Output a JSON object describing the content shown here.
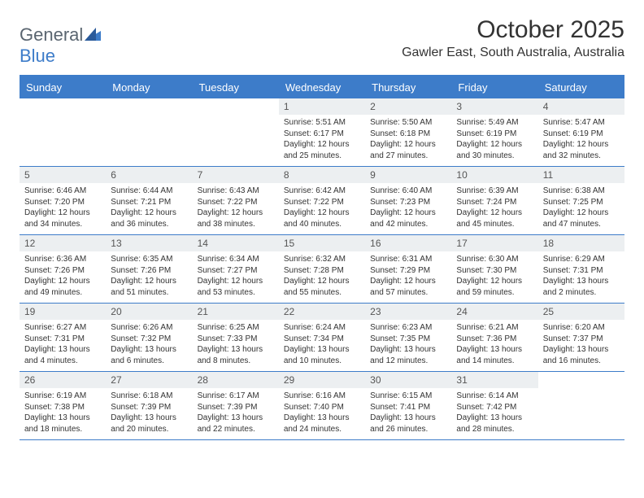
{
  "brand": {
    "part1": "General",
    "part2": "Blue"
  },
  "title": "October 2025",
  "location": "Gawler East, South Australia, Australia",
  "colors": {
    "accent": "#3d7cc9",
    "header_bg": "#3d7cc9",
    "header_text": "#ffffff",
    "daynum_bg": "#eceff1",
    "body_text": "#333333",
    "logo_gray": "#5a6570"
  },
  "day_headers": [
    "Sunday",
    "Monday",
    "Tuesday",
    "Wednesday",
    "Thursday",
    "Friday",
    "Saturday"
  ],
  "weeks": [
    [
      {
        "empty": true
      },
      {
        "empty": true
      },
      {
        "empty": true
      },
      {
        "num": "1",
        "sunrise": "Sunrise: 5:51 AM",
        "sunset": "Sunset: 6:17 PM",
        "daylight": "Daylight: 12 hours and 25 minutes."
      },
      {
        "num": "2",
        "sunrise": "Sunrise: 5:50 AM",
        "sunset": "Sunset: 6:18 PM",
        "daylight": "Daylight: 12 hours and 27 minutes."
      },
      {
        "num": "3",
        "sunrise": "Sunrise: 5:49 AM",
        "sunset": "Sunset: 6:19 PM",
        "daylight": "Daylight: 12 hours and 30 minutes."
      },
      {
        "num": "4",
        "sunrise": "Sunrise: 5:47 AM",
        "sunset": "Sunset: 6:19 PM",
        "daylight": "Daylight: 12 hours and 32 minutes."
      }
    ],
    [
      {
        "num": "5",
        "sunrise": "Sunrise: 6:46 AM",
        "sunset": "Sunset: 7:20 PM",
        "daylight": "Daylight: 12 hours and 34 minutes."
      },
      {
        "num": "6",
        "sunrise": "Sunrise: 6:44 AM",
        "sunset": "Sunset: 7:21 PM",
        "daylight": "Daylight: 12 hours and 36 minutes."
      },
      {
        "num": "7",
        "sunrise": "Sunrise: 6:43 AM",
        "sunset": "Sunset: 7:22 PM",
        "daylight": "Daylight: 12 hours and 38 minutes."
      },
      {
        "num": "8",
        "sunrise": "Sunrise: 6:42 AM",
        "sunset": "Sunset: 7:22 PM",
        "daylight": "Daylight: 12 hours and 40 minutes."
      },
      {
        "num": "9",
        "sunrise": "Sunrise: 6:40 AM",
        "sunset": "Sunset: 7:23 PM",
        "daylight": "Daylight: 12 hours and 42 minutes."
      },
      {
        "num": "10",
        "sunrise": "Sunrise: 6:39 AM",
        "sunset": "Sunset: 7:24 PM",
        "daylight": "Daylight: 12 hours and 45 minutes."
      },
      {
        "num": "11",
        "sunrise": "Sunrise: 6:38 AM",
        "sunset": "Sunset: 7:25 PM",
        "daylight": "Daylight: 12 hours and 47 minutes."
      }
    ],
    [
      {
        "num": "12",
        "sunrise": "Sunrise: 6:36 AM",
        "sunset": "Sunset: 7:26 PM",
        "daylight": "Daylight: 12 hours and 49 minutes."
      },
      {
        "num": "13",
        "sunrise": "Sunrise: 6:35 AM",
        "sunset": "Sunset: 7:26 PM",
        "daylight": "Daylight: 12 hours and 51 minutes."
      },
      {
        "num": "14",
        "sunrise": "Sunrise: 6:34 AM",
        "sunset": "Sunset: 7:27 PM",
        "daylight": "Daylight: 12 hours and 53 minutes."
      },
      {
        "num": "15",
        "sunrise": "Sunrise: 6:32 AM",
        "sunset": "Sunset: 7:28 PM",
        "daylight": "Daylight: 12 hours and 55 minutes."
      },
      {
        "num": "16",
        "sunrise": "Sunrise: 6:31 AM",
        "sunset": "Sunset: 7:29 PM",
        "daylight": "Daylight: 12 hours and 57 minutes."
      },
      {
        "num": "17",
        "sunrise": "Sunrise: 6:30 AM",
        "sunset": "Sunset: 7:30 PM",
        "daylight": "Daylight: 12 hours and 59 minutes."
      },
      {
        "num": "18",
        "sunrise": "Sunrise: 6:29 AM",
        "sunset": "Sunset: 7:31 PM",
        "daylight": "Daylight: 13 hours and 2 minutes."
      }
    ],
    [
      {
        "num": "19",
        "sunrise": "Sunrise: 6:27 AM",
        "sunset": "Sunset: 7:31 PM",
        "daylight": "Daylight: 13 hours and 4 minutes."
      },
      {
        "num": "20",
        "sunrise": "Sunrise: 6:26 AM",
        "sunset": "Sunset: 7:32 PM",
        "daylight": "Daylight: 13 hours and 6 minutes."
      },
      {
        "num": "21",
        "sunrise": "Sunrise: 6:25 AM",
        "sunset": "Sunset: 7:33 PM",
        "daylight": "Daylight: 13 hours and 8 minutes."
      },
      {
        "num": "22",
        "sunrise": "Sunrise: 6:24 AM",
        "sunset": "Sunset: 7:34 PM",
        "daylight": "Daylight: 13 hours and 10 minutes."
      },
      {
        "num": "23",
        "sunrise": "Sunrise: 6:23 AM",
        "sunset": "Sunset: 7:35 PM",
        "daylight": "Daylight: 13 hours and 12 minutes."
      },
      {
        "num": "24",
        "sunrise": "Sunrise: 6:21 AM",
        "sunset": "Sunset: 7:36 PM",
        "daylight": "Daylight: 13 hours and 14 minutes."
      },
      {
        "num": "25",
        "sunrise": "Sunrise: 6:20 AM",
        "sunset": "Sunset: 7:37 PM",
        "daylight": "Daylight: 13 hours and 16 minutes."
      }
    ],
    [
      {
        "num": "26",
        "sunrise": "Sunrise: 6:19 AM",
        "sunset": "Sunset: 7:38 PM",
        "daylight": "Daylight: 13 hours and 18 minutes."
      },
      {
        "num": "27",
        "sunrise": "Sunrise: 6:18 AM",
        "sunset": "Sunset: 7:39 PM",
        "daylight": "Daylight: 13 hours and 20 minutes."
      },
      {
        "num": "28",
        "sunrise": "Sunrise: 6:17 AM",
        "sunset": "Sunset: 7:39 PM",
        "daylight": "Daylight: 13 hours and 22 minutes."
      },
      {
        "num": "29",
        "sunrise": "Sunrise: 6:16 AM",
        "sunset": "Sunset: 7:40 PM",
        "daylight": "Daylight: 13 hours and 24 minutes."
      },
      {
        "num": "30",
        "sunrise": "Sunrise: 6:15 AM",
        "sunset": "Sunset: 7:41 PM",
        "daylight": "Daylight: 13 hours and 26 minutes."
      },
      {
        "num": "31",
        "sunrise": "Sunrise: 6:14 AM",
        "sunset": "Sunset: 7:42 PM",
        "daylight": "Daylight: 13 hours and 28 minutes."
      },
      {
        "empty": true
      }
    ]
  ]
}
